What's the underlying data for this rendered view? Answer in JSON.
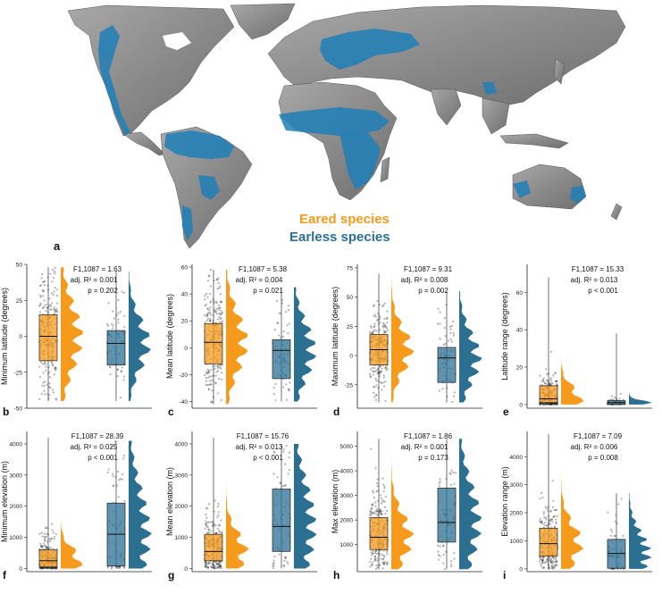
{
  "map": {
    "panel_letter": "a",
    "legend": {
      "eared": "Eared species",
      "earless": "Earless species"
    },
    "colors": {
      "eared": "#f59a1b",
      "earless": "#2b6f91",
      "range_fill": "#1f7fb7",
      "land": "#8f8f8f"
    }
  },
  "chart_data": [
    {
      "panel": "b",
      "type": "raincloud",
      "ylabel": "Minimum latitude (degrees)",
      "ylim": [
        -50,
        50
      ],
      "yticks": [
        "-50",
        "-25",
        "0",
        "25",
        "50"
      ],
      "stats": [
        "F1,1087 = 1.63",
        "adj. R² = 0.001",
        "p = 0.202"
      ],
      "series": [
        {
          "q1": -17,
          "median": 0,
          "q3": 15,
          "wlo": -45,
          "whi": 48
        },
        {
          "q1": -20,
          "median": -5,
          "q3": 4,
          "wlo": -45,
          "whi": 45
        }
      ]
    },
    {
      "panel": "c",
      "type": "raincloud",
      "ylabel": "Mean latitude (degrees)",
      "ylim": [
        -45,
        62
      ],
      "yticks": [
        "-40",
        "-20",
        "0",
        "20",
        "40",
        "60"
      ],
      "stats": [
        "F1,1087 = 5.38",
        "adj. R² = 0.004",
        "p = 0.021"
      ],
      "series": [
        {
          "q1": -12,
          "median": 4,
          "q3": 18,
          "wlo": -42,
          "whi": 58
        },
        {
          "q1": -23,
          "median": -2,
          "q3": 6,
          "wlo": -40,
          "whi": 45
        }
      ]
    },
    {
      "panel": "d",
      "type": "raincloud",
      "ylabel": "Maximum latitude (degrees)",
      "ylim": [
        -45,
        78
      ],
      "yticks": [
        "-25",
        "0",
        "25",
        "50",
        "75"
      ],
      "stats": [
        "F1,1087 = 9.31",
        "adj. R² = 0.008",
        "p = 0.002"
      ],
      "series": [
        {
          "q1": -8,
          "median": 5,
          "q3": 18,
          "wlo": -40,
          "whi": 70
        },
        {
          "q1": -23,
          "median": -2,
          "q3": 7,
          "wlo": -40,
          "whi": 55
        }
      ]
    },
    {
      "panel": "e",
      "type": "raincloud",
      "ylabel": "Latitude range (degrees)",
      "ylim": [
        -2,
        75
      ],
      "yticks": [
        "0",
        "20",
        "40",
        "60"
      ],
      "stats": [
        "F1,1087 = 15.33",
        "adj. R² = 0.013",
        "p < 0.001"
      ],
      "series": [
        {
          "q1": 1,
          "median": 3,
          "q3": 10,
          "wlo": 0,
          "whi": 68
        },
        {
          "q1": 0,
          "median": 1,
          "q3": 2,
          "wlo": 0,
          "whi": 38
        }
      ]
    },
    {
      "panel": "f",
      "type": "raincloud",
      "ylabel": "Minimum elevation (m)",
      "ylim": [
        -100,
        4400
      ],
      "yticks": [
        "0",
        "1000",
        "2000",
        "3000",
        "4000"
      ],
      "stats": [
        "F1,1087 = 28.39",
        "adj. R² = 0.025",
        "p < 0.001"
      ],
      "series": [
        {
          "q1": 50,
          "median": 250,
          "q3": 600,
          "wlo": 0,
          "whi": 4200
        },
        {
          "q1": 80,
          "median": 1100,
          "q3": 2100,
          "wlo": 0,
          "whi": 4100
        }
      ]
    },
    {
      "panel": "g",
      "type": "raincloud",
      "ylabel": "Mean elevation (m)",
      "ylim": [
        -100,
        4400
      ],
      "yticks": [
        "0",
        "1000",
        "2000",
        "3000",
        "4000"
      ],
      "stats": [
        "F1,1087 = 15.76",
        "adj. R² = 0.013",
        "p < 0.001"
      ],
      "series": [
        {
          "q1": 250,
          "median": 550,
          "q3": 1100,
          "wlo": 0,
          "whi": 4200
        },
        {
          "q1": 550,
          "median": 1350,
          "q3": 2550,
          "wlo": 0,
          "whi": 4000
        }
      ]
    },
    {
      "panel": "h",
      "type": "raincloud",
      "ylabel": "Max elevation (m)",
      "ylim": [
        -100,
        5600
      ],
      "yticks": [
        "1000",
        "2000",
        "3000",
        "4000",
        "5000"
      ],
      "stats": [
        "F1,1087 = 1.86",
        "adj. R² = 0.001",
        "p = 0.173"
      ],
      "series": [
        {
          "q1": 800,
          "median": 1300,
          "q3": 2100,
          "wlo": 0,
          "whi": 5300
        },
        {
          "q1": 1100,
          "median": 1900,
          "q3": 3300,
          "wlo": 0,
          "whi": 5300
        }
      ]
    },
    {
      "panel": "i",
      "type": "raincloud",
      "ylabel": "Elevation range (m)",
      "ylim": [
        -100,
        4900
      ],
      "yticks": [
        "0",
        "1000",
        "2000",
        "3000",
        "4000"
      ],
      "stats": [
        "F1,1087 = 7.09",
        "adj. R² = 0.006",
        "p = 0.008"
      ],
      "series": [
        {
          "q1": 450,
          "median": 900,
          "q3": 1450,
          "wlo": 0,
          "whi": 4800
        },
        {
          "q1": 20,
          "median": 550,
          "q3": 1050,
          "wlo": 0,
          "whi": 2700
        }
      ]
    }
  ]
}
